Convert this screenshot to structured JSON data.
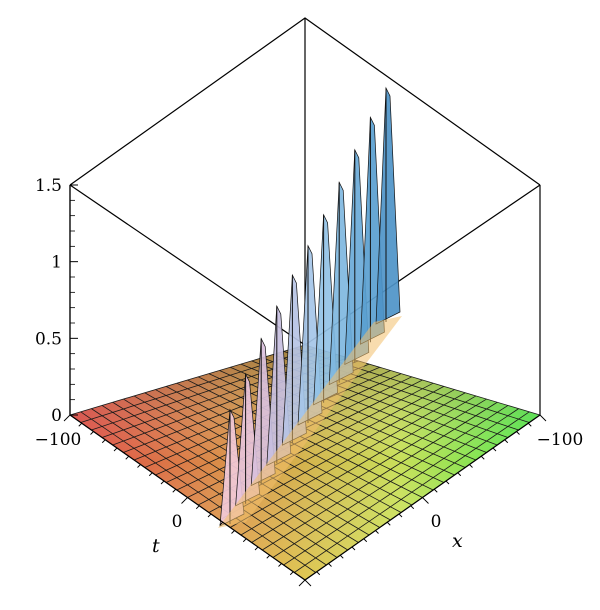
{
  "chart_data": {
    "type": "surface3d",
    "xlabel": "x",
    "ylabel": "t",
    "zlabel": "",
    "x_range": [
      -100,
      100
    ],
    "t_range": [
      -100,
      100
    ],
    "zlim": [
      0,
      1.5
    ],
    "x_ticks": [
      {
        "value": -100,
        "label": "−100"
      },
      {
        "value": 0,
        "label": "0"
      }
    ],
    "t_ticks": [
      {
        "value": -100,
        "label": "−100"
      },
      {
        "value": 0,
        "label": "0"
      }
    ],
    "z_ticks": [
      {
        "value": 0,
        "label": "0"
      },
      {
        "value": 0.5,
        "label": "0.5"
      },
      {
        "value": 1,
        "label": "1"
      },
      {
        "value": 1.5,
        "label": "1.5"
      }
    ],
    "colormap": "x/t position (red, orange, yellow, green, blue)",
    "peaks": [
      {
        "t": -45,
        "x": 30,
        "z": 0.72
      },
      {
        "t": -38,
        "x": 22,
        "z": 0.82
      },
      {
        "t": -31,
        "x": 14,
        "z": 0.92
      },
      {
        "t": -24,
        "x": 6,
        "z": 1.0
      },
      {
        "t": -17,
        "x": -2,
        "z": 1.07
      },
      {
        "t": -10,
        "x": -10,
        "z": 1.13
      },
      {
        "t": -3,
        "x": -18,
        "z": 1.2
      },
      {
        "t": 4,
        "x": -26,
        "z": 1.28
      },
      {
        "t": 11,
        "x": -34,
        "z": 1.36
      },
      {
        "t": 18,
        "x": -42,
        "z": 1.44
      },
      {
        "t": 25,
        "x": -50,
        "z": 1.5
      }
    ],
    "grid": true,
    "bounding_box": true
  }
}
